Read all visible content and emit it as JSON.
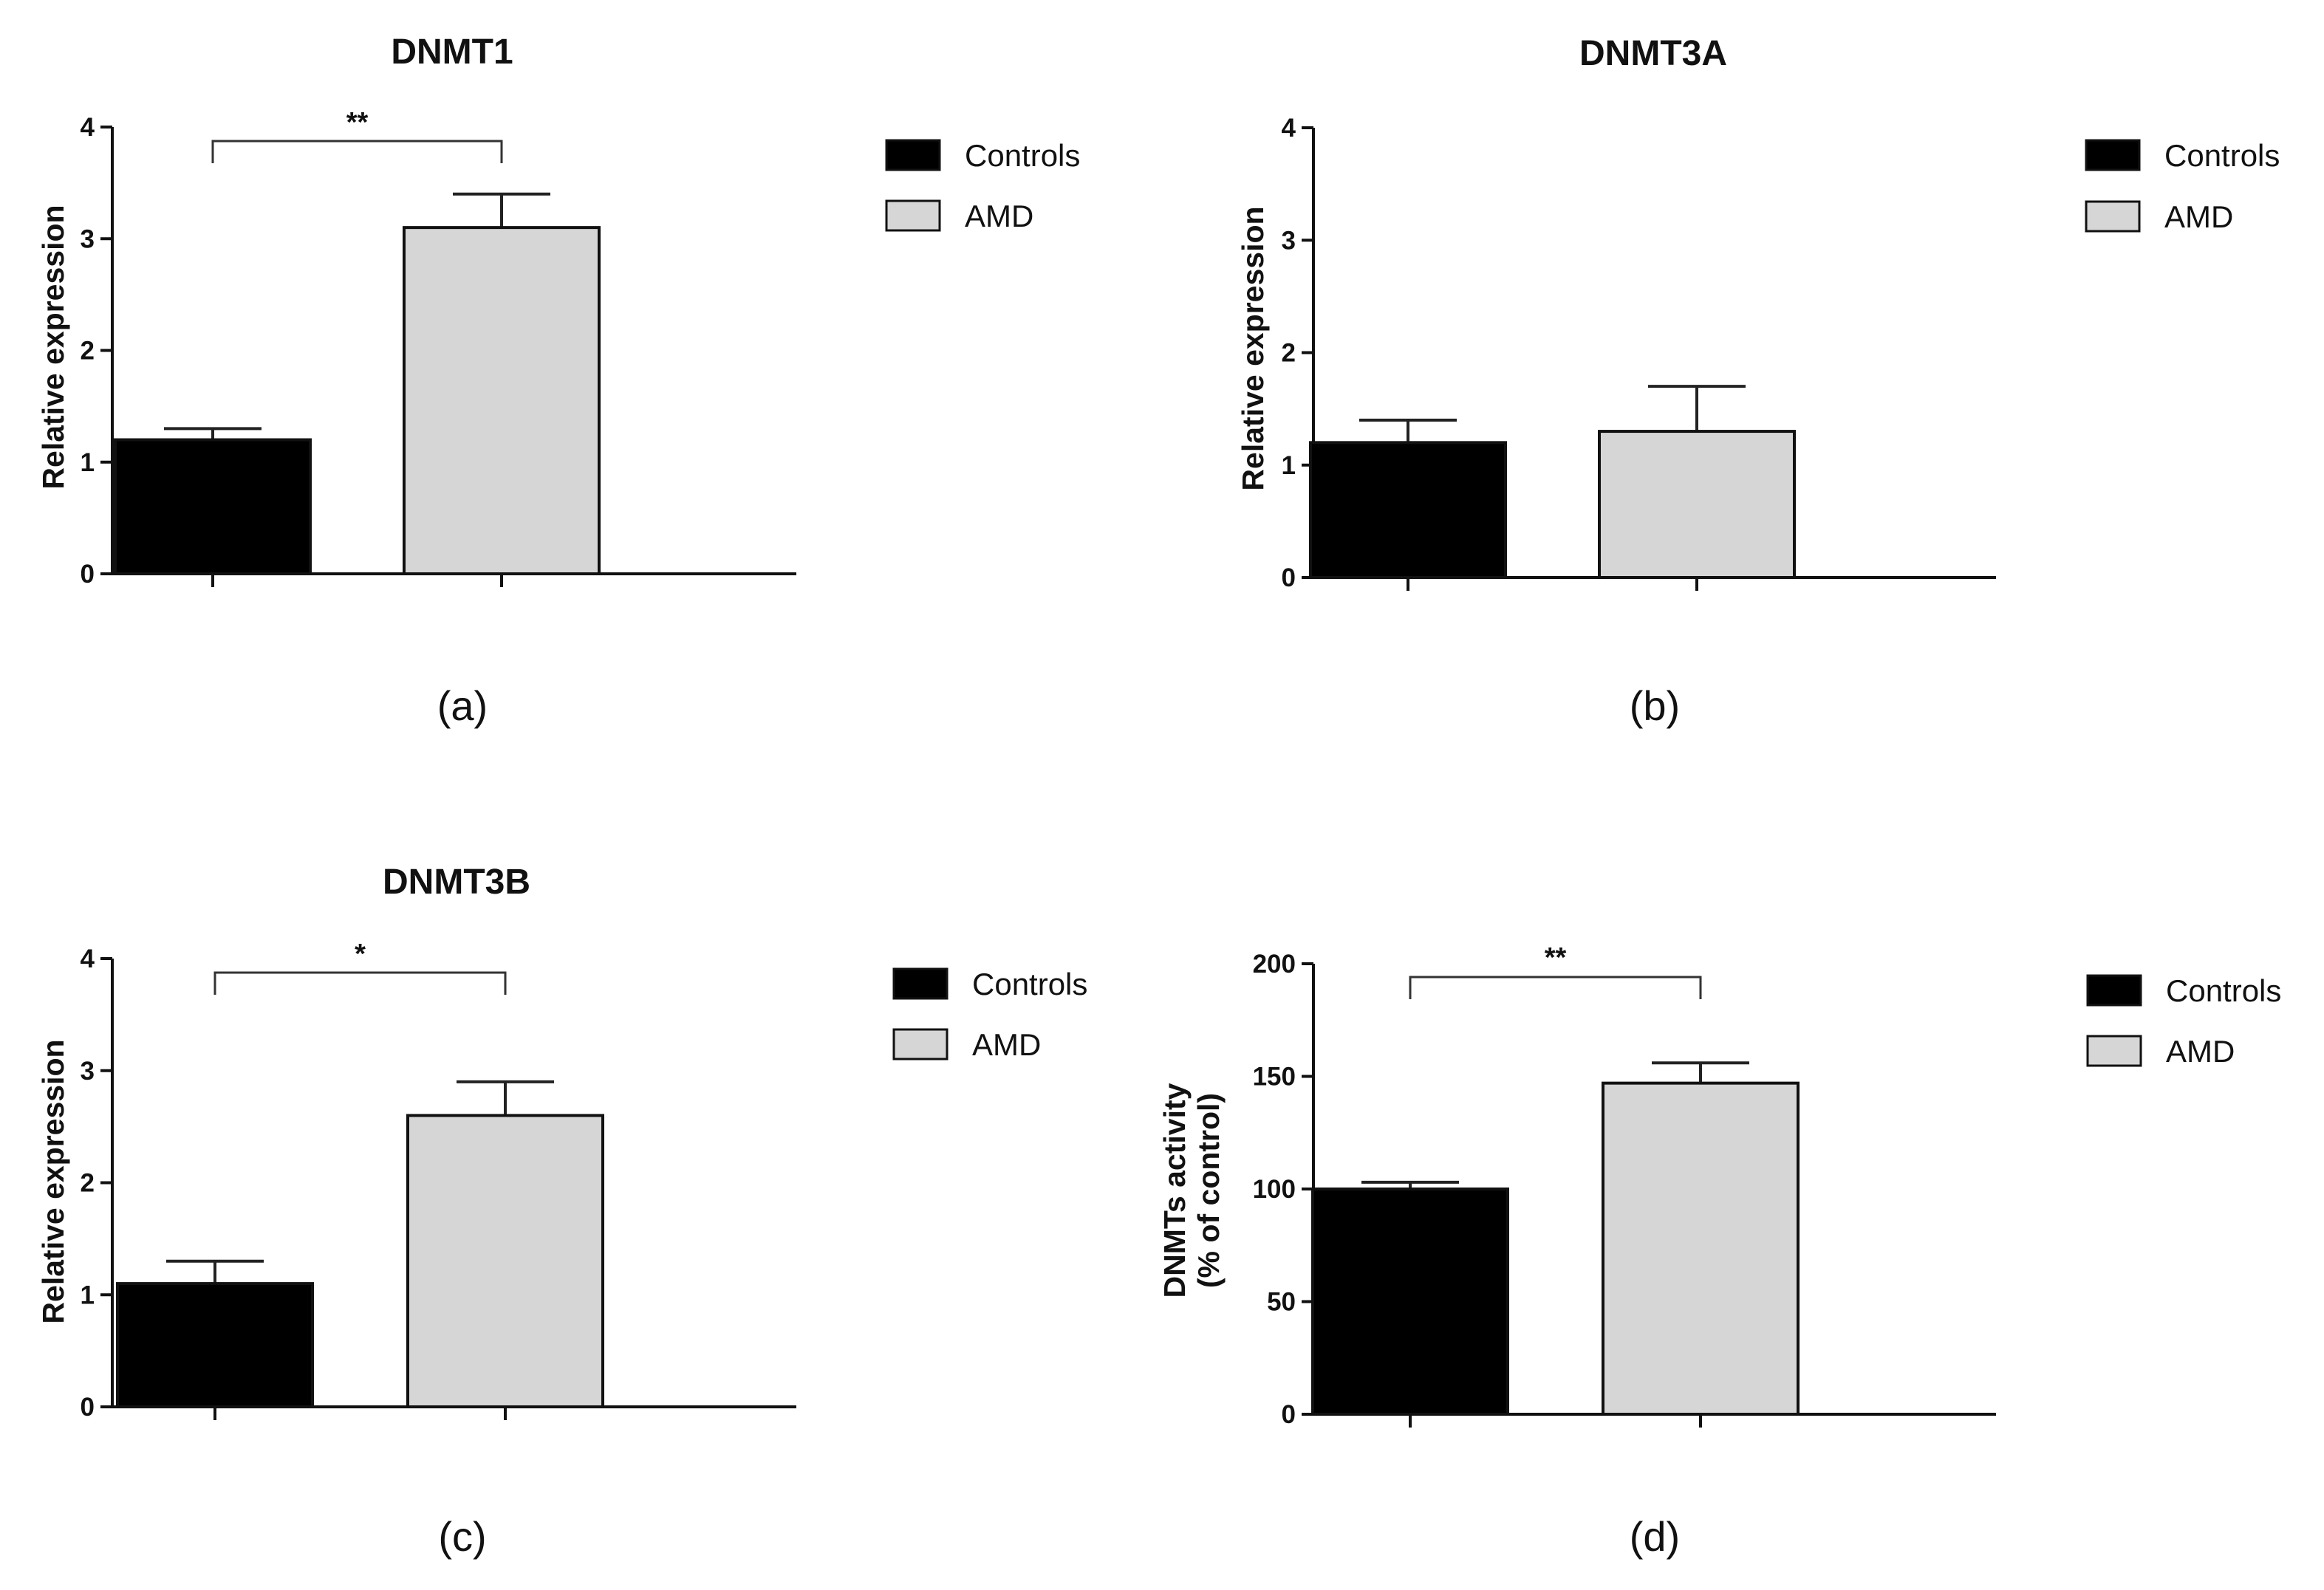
{
  "chart_data": [
    {
      "type": "bar",
      "panel": "(a)",
      "title": "DNMT1",
      "xlabel": "",
      "ylabel": "Relative expression",
      "ylim": [
        0,
        4
      ],
      "yticks": [
        "0",
        "1",
        "2",
        "3",
        "4"
      ],
      "categories": [
        "Controls",
        "AMD"
      ],
      "values": [
        1.2,
        3.1
      ],
      "errors": [
        0.1,
        0.3
      ],
      "colors": [
        "#000000",
        "#d6d6d6"
      ],
      "significance": "**",
      "legend": [
        "Controls",
        "AMD"
      ]
    },
    {
      "type": "bar",
      "panel": "(b)",
      "title": "DNMT3A",
      "xlabel": "",
      "ylabel": "Relative expression",
      "ylim": [
        0,
        4
      ],
      "yticks": [
        "0",
        "1",
        "2",
        "3",
        "4"
      ],
      "categories": [
        "Controls",
        "AMD"
      ],
      "values": [
        1.2,
        1.3
      ],
      "errors": [
        0.2,
        0.4
      ],
      "colors": [
        "#000000",
        "#d6d6d6"
      ],
      "significance": "",
      "legend": [
        "Controls",
        "AMD"
      ]
    },
    {
      "type": "bar",
      "panel": "(c)",
      "title": "DNMT3B",
      "xlabel": "",
      "ylabel": "Relative expression",
      "ylim": [
        0,
        4
      ],
      "yticks": [
        "0",
        "1",
        "2",
        "3",
        "4"
      ],
      "categories": [
        "Controls",
        "AMD"
      ],
      "values": [
        1.1,
        2.6
      ],
      "errors": [
        0.2,
        0.3
      ],
      "colors": [
        "#000000",
        "#d6d6d6"
      ],
      "significance": "*",
      "legend": [
        "Controls",
        "AMD"
      ]
    },
    {
      "type": "bar",
      "panel": "(d)",
      "title": "",
      "xlabel": "",
      "ylabel": [
        "DNMTs activity",
        "(% of control)"
      ],
      "ylim": [
        0,
        200
      ],
      "yticks": [
        "0",
        "50",
        "100",
        "150",
        "200"
      ],
      "categories": [
        "Controls",
        "AMD"
      ],
      "values": [
        100,
        147
      ],
      "errors": [
        3,
        9
      ],
      "colors": [
        "#000000",
        "#d6d6d6"
      ],
      "significance": "**",
      "legend": [
        "Controls",
        "AMD"
      ]
    }
  ]
}
